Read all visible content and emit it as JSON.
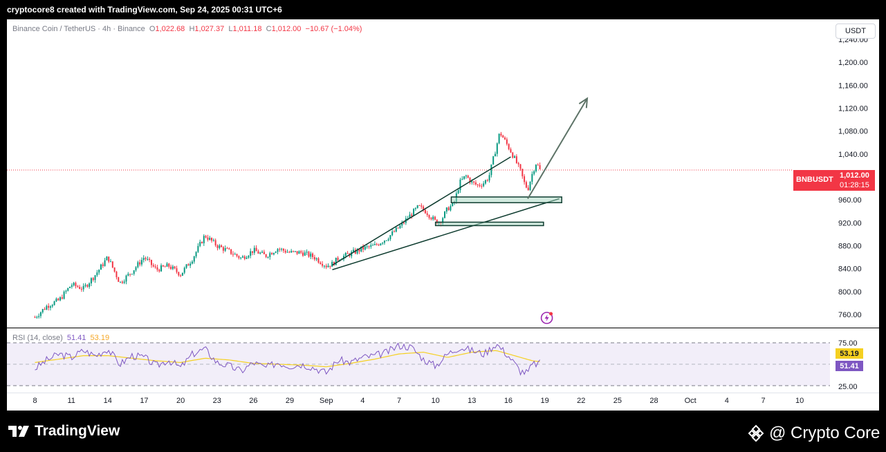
{
  "header": {
    "attribution": "cryptocore8 created with TradingView.com, Sep 24, 2025 00:31 UTC+6"
  },
  "legend": {
    "symbol": "Binance Coin / TetherUS · 4h · Binance",
    "o_label": "O",
    "o": "1,022.68",
    "h_label": "H",
    "h": "1,027.37",
    "l_label": "L",
    "l": "1,011.18",
    "c_label": "C",
    "c": "1,012.00",
    "change": "−10.67 (−1.04%)"
  },
  "unit_button": "USDT",
  "price_tag": {
    "symbol": "BNBUSDT",
    "price": "1,012.00",
    "countdown": "01:28:15"
  },
  "rsi": {
    "title": "RSI (14, close)",
    "rsi_value": "51.41",
    "signal_value": "53.19",
    "upper_band": "75.00",
    "lower_band": "25.00"
  },
  "footer": {
    "brand": "TradingView",
    "author": "@ Crypto Core"
  },
  "colors": {
    "up": "#089981",
    "down": "#f23645",
    "rsi": "#7e57c2",
    "signal": "#f5d020",
    "pattern": "#0d3b2e",
    "zone": "#a5d6c0"
  },
  "icons": {
    "brand_logo": "tradingview-logo-icon",
    "author_logo": "binance-diamond-icon",
    "lightning": "lightning-icon"
  },
  "chart_data": {
    "type": "candlestick",
    "timeframe": "4h",
    "y_ticks": [
      "1,240.00",
      "1,200.00",
      "1,160.00",
      "1,120.00",
      "1,080.00",
      "1,040.00",
      "960.00",
      "920.00",
      "880.00",
      "840.00",
      "800.00",
      "760.00"
    ],
    "y_tick_values": [
      1240,
      1200,
      1160,
      1120,
      1080,
      1040,
      960,
      920,
      880,
      840,
      800,
      760
    ],
    "ylim": [
      737,
      1275
    ],
    "x_ticks": [
      "8",
      "11",
      "14",
      "17",
      "20",
      "23",
      "26",
      "29",
      "Sep",
      "4",
      "7",
      "10",
      "13",
      "16",
      "19",
      "22",
      "25",
      "28",
      "Oct",
      "4",
      "7",
      "10"
    ],
    "x_tick_pos": [
      0,
      3,
      6,
      9,
      12,
      15,
      18,
      21,
      24,
      27,
      30,
      33,
      36,
      39,
      42,
      45,
      48,
      51,
      54,
      57,
      60,
      63
    ],
    "last_price": 1012,
    "close_path": [
      [
        0,
        755
      ],
      [
        1,
        775
      ],
      [
        2,
        785
      ],
      [
        3,
        812
      ],
      [
        4,
        805
      ],
      [
        5,
        830
      ],
      [
        6,
        860
      ],
      [
        7,
        815
      ],
      [
        8,
        835
      ],
      [
        9,
        860
      ],
      [
        10,
        838
      ],
      [
        11,
        845
      ],
      [
        12,
        830
      ],
      [
        13,
        858
      ],
      [
        14,
        898
      ],
      [
        15,
        880
      ],
      [
        16,
        870
      ],
      [
        17,
        858
      ],
      [
        18,
        872
      ],
      [
        19,
        862
      ],
      [
        20,
        875
      ],
      [
        21,
        868
      ],
      [
        22,
        868
      ],
      [
        23,
        860
      ],
      [
        24,
        845
      ],
      [
        24.5,
        848
      ],
      [
        25,
        858
      ],
      [
        26,
        866
      ],
      [
        27,
        875
      ],
      [
        28,
        880
      ],
      [
        29,
        893
      ],
      [
        30,
        912
      ],
      [
        31,
        935
      ],
      [
        31.6,
        948
      ],
      [
        32.2,
        940
      ],
      [
        32.5,
        933
      ],
      [
        33.0,
        922
      ],
      [
        33.4,
        922
      ],
      [
        34,
        945
      ],
      [
        34.5,
        952
      ],
      [
        35,
        990
      ],
      [
        35.5,
        1002
      ],
      [
        36,
        990
      ],
      [
        36.5,
        985
      ],
      [
        37,
        990
      ],
      [
        37.4,
        1000
      ],
      [
        38,
        1052
      ],
      [
        38.3,
        1078
      ],
      [
        38.8,
        1060
      ],
      [
        39.2,
        1045
      ],
      [
        39.6,
        1028
      ],
      [
        40.0,
        1010
      ],
      [
        40.3,
        990
      ],
      [
        40.6,
        978
      ],
      [
        41.0,
        1008
      ],
      [
        41.3,
        1025
      ],
      [
        41.6,
        1012
      ]
    ],
    "annotations": {
      "wedge_upper": [
        [
          24.5,
          846
        ],
        [
          39.2,
          1035
        ]
      ],
      "wedge_lower": [
        [
          24.5,
          838
        ],
        [
          43.2,
          962
        ]
      ],
      "zone_upper": {
        "x": [
          34.3,
          43.4
        ],
        "y": [
          955,
          965
        ]
      },
      "zone_lower": {
        "x": [
          33.0,
          41.9
        ],
        "y": [
          915,
          921
        ]
      },
      "projection_arrow": [
        [
          40.6,
          962
        ],
        [
          45.5,
          1137
        ]
      ]
    },
    "rsi_series": [
      [
        0,
        45
      ],
      [
        1,
        55
      ],
      [
        2,
        62
      ],
      [
        3,
        58
      ],
      [
        4,
        66
      ],
      [
        5,
        60
      ],
      [
        6,
        68
      ],
      [
        7,
        50
      ],
      [
        8,
        60
      ],
      [
        9,
        58
      ],
      [
        10,
        48
      ],
      [
        11,
        55
      ],
      [
        12,
        46
      ],
      [
        13,
        62
      ],
      [
        14,
        68
      ],
      [
        15,
        52
      ],
      [
        16,
        48
      ],
      [
        17,
        42
      ],
      [
        18,
        52
      ],
      [
        19,
        46
      ],
      [
        20,
        52
      ],
      [
        21,
        48
      ],
      [
        22,
        50
      ],
      [
        23,
        46
      ],
      [
        24,
        40
      ],
      [
        25,
        55
      ],
      [
        26,
        52
      ],
      [
        27,
        58
      ],
      [
        28,
        60
      ],
      [
        29,
        64
      ],
      [
        30,
        72
      ],
      [
        31,
        70
      ],
      [
        32,
        56
      ],
      [
        33,
        48
      ],
      [
        34,
        62
      ],
      [
        35,
        70
      ],
      [
        36,
        66
      ],
      [
        37,
        62
      ],
      [
        38,
        74
      ],
      [
        39,
        60
      ],
      [
        40,
        42
      ],
      [
        40.6,
        40
      ],
      [
        41,
        50
      ],
      [
        41.6,
        51
      ]
    ],
    "signal_series": [
      [
        0,
        52
      ],
      [
        2,
        56
      ],
      [
        4,
        60
      ],
      [
        6,
        60
      ],
      [
        8,
        57
      ],
      [
        10,
        54
      ],
      [
        12,
        52
      ],
      [
        14,
        57
      ],
      [
        16,
        55
      ],
      [
        18,
        51
      ],
      [
        20,
        50
      ],
      [
        22,
        49
      ],
      [
        24,
        47
      ],
      [
        26,
        51
      ],
      [
        28,
        56
      ],
      [
        30,
        62
      ],
      [
        32,
        64
      ],
      [
        34,
        58
      ],
      [
        36,
        64
      ],
      [
        38,
        66
      ],
      [
        40,
        58
      ],
      [
        41,
        54
      ],
      [
        41.6,
        53
      ]
    ]
  }
}
